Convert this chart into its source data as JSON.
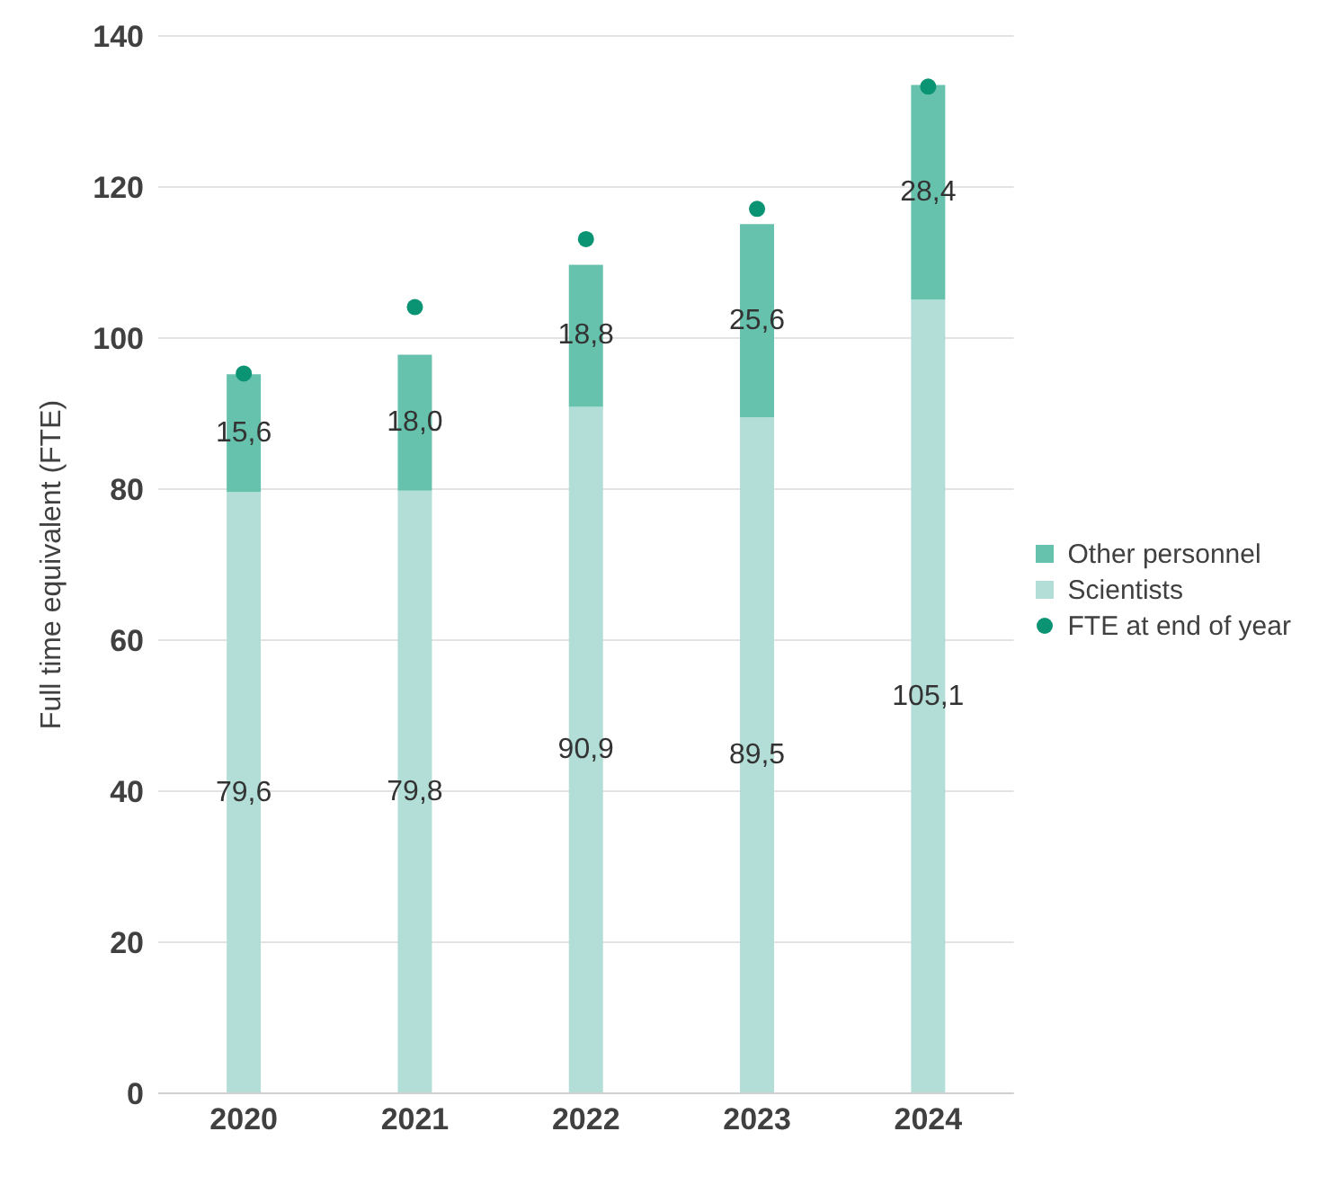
{
  "chart_data": {
    "type": "bar",
    "ylabel": "Full time equivalent (FTE)",
    "categories": [
      "2020",
      "2021",
      "2022",
      "2023",
      "2024"
    ],
    "stacked": true,
    "series": [
      {
        "name": "Scientists",
        "color": "#b3ded8",
        "values": [
          79.6,
          79.8,
          90.9,
          89.5,
          105.1
        ],
        "value_labels": [
          "79,6",
          "79,8",
          "90,9",
          "89,5",
          "105,1"
        ]
      },
      {
        "name": "Other personnel",
        "color": "#66c2ad",
        "values": [
          15.6,
          18.0,
          18.8,
          25.6,
          28.4
        ],
        "value_labels": [
          "15,6",
          "18,0",
          "18,8",
          "25,6",
          "28,4"
        ]
      },
      {
        "name": "FTE at end of year",
        "type": "scatter",
        "color": "#0a9474",
        "values": [
          95.3,
          104.1,
          113.1,
          117.1,
          133.3
        ]
      }
    ],
    "ylim": [
      0,
      140
    ],
    "yticks": [
      0,
      20,
      40,
      60,
      80,
      100,
      120,
      140
    ],
    "grid": "y",
    "legend": "right",
    "marker": "circle"
  }
}
